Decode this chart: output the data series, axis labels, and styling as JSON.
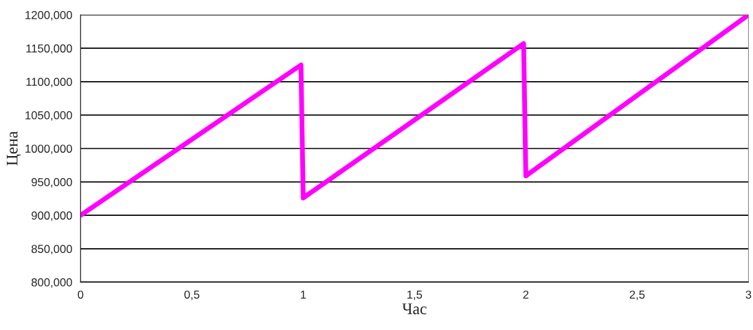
{
  "chart_data": {
    "type": "line",
    "xlabel": "Час",
    "ylabel": "Цена",
    "x": [
      0,
      0.99,
      1.0,
      1.99,
      2.0,
      3
    ],
    "series": [
      {
        "color": "#ff00ff",
        "values": [
          900000,
          1125000,
          926000,
          1157000,
          959000,
          1200000
        ]
      }
    ],
    "xlim": [
      0,
      3
    ],
    "xticks": [
      0,
      {
        "value": 0.5,
        "label": "0,5"
      },
      1,
      {
        "value": 1.5,
        "label": "1,5"
      },
      2,
      {
        "value": 2.5,
        "label": "2,5"
      },
      3
    ],
    "ylim": [
      800000,
      1200000
    ],
    "yticks": [
      {
        "value": 800000,
        "label": "800,000"
      },
      {
        "value": 850000,
        "label": "850,000"
      },
      {
        "value": 900000,
        "label": "900,000"
      },
      {
        "value": 950000,
        "label": "950,000"
      },
      {
        "value": 1000000,
        "label": "1000,000"
      },
      {
        "value": 1050000,
        "label": "1050,000"
      },
      {
        "value": 1100000,
        "label": "1100,000"
      },
      {
        "value": 1150000,
        "label": "1150,000"
      },
      {
        "value": 1200000,
        "label": "1200,000"
      }
    ],
    "grid": "y",
    "marker": "none",
    "line_style": "solid"
  }
}
